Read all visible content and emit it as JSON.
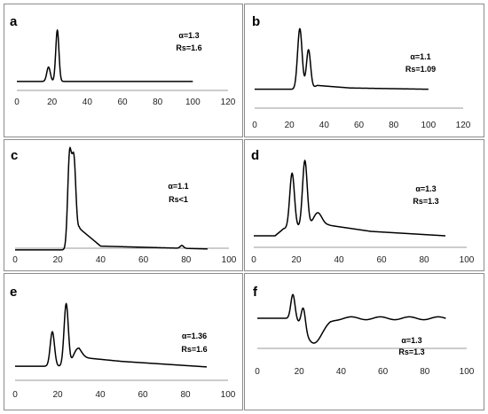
{
  "chart_data": [
    {
      "type": "line",
      "label": "a",
      "annotations": [
        "α=1.3",
        "Rs=1.6"
      ],
      "xlim": [
        0,
        120
      ],
      "xticks": [
        0,
        20,
        40,
        60,
        80,
        100,
        120
      ],
      "x_end": 100,
      "baseline": 0.02,
      "peaks": [
        {
          "x": 18,
          "h": 0.28,
          "w": 1.0
        },
        {
          "x": 23,
          "h": 1.0,
          "w": 0.9
        }
      ],
      "tail": [],
      "shoulders": []
    },
    {
      "type": "line",
      "label": "b",
      "annotations": [
        "α=1.1",
        "Rs=1.09"
      ],
      "xlim": [
        0,
        120
      ],
      "xticks": [
        0,
        20,
        40,
        60,
        80,
        100,
        120
      ],
      "x_end": 100,
      "baseline": 0.06,
      "peaks": [
        {
          "x": 26,
          "h": 0.95,
          "w": 1.3
        },
        {
          "x": 31,
          "h": 0.62,
          "w": 1.2
        }
      ],
      "tail": [
        {
          "x": 36,
          "y": 0.12
        },
        {
          "x": 55,
          "y": 0.08
        },
        {
          "x": 100,
          "y": 0.06
        }
      ],
      "shoulders": []
    },
    {
      "type": "line",
      "label": "c",
      "annotations": [
        "α=1.1",
        "Rs<1"
      ],
      "xlim": [
        0,
        100
      ],
      "xticks": [
        0,
        20,
        40,
        60,
        80,
        100
      ],
      "x_end": 90,
      "baseline": 0.02,
      "peaks": [
        {
          "x": 25.5,
          "h": 1.0,
          "w": 0.9
        },
        {
          "x": 27.5,
          "h": 0.85,
          "w": 0.9
        }
      ],
      "tail": [
        {
          "x": 30,
          "y": 0.25
        },
        {
          "x": 40,
          "y": 0.06
        },
        {
          "x": 90,
          "y": 0.03
        }
      ],
      "shoulders": [
        {
          "x": 78,
          "h": 0.03,
          "w": 0.8
        }
      ]
    },
    {
      "type": "line",
      "label": "d",
      "annotations": [
        "α=1.3",
        "Rs=1.3"
      ],
      "xlim": [
        0,
        100
      ],
      "xticks": [
        0,
        20,
        40,
        60,
        80,
        100
      ],
      "x_end": 90,
      "baseline": 0.1,
      "peaks": [
        {
          "x": 18,
          "h": 0.62,
          "w": 1.1
        },
        {
          "x": 24,
          "h": 0.75,
          "w": 1.1
        },
        {
          "x": 30,
          "h": 0.15,
          "w": 2.0
        }
      ],
      "tail": [
        {
          "x": 14,
          "y": 0.18
        },
        {
          "x": 35,
          "y": 0.22
        },
        {
          "x": 55,
          "y": 0.15
        },
        {
          "x": 90,
          "y": 0.1
        }
      ],
      "shoulders": []
    },
    {
      "type": "line",
      "label": "e",
      "annotations": [
        "α=1.36",
        "Rs=1.6"
      ],
      "xlim": [
        0,
        100
      ],
      "xticks": [
        0,
        20,
        40,
        60,
        80,
        100
      ],
      "x_end": 90,
      "baseline": 0.05,
      "peaks": [
        {
          "x": 17.5,
          "h": 0.5,
          "w": 1.0
        },
        {
          "x": 24,
          "h": 0.9,
          "w": 1.0
        },
        {
          "x": 29,
          "h": 0.15,
          "w": 2.0
        }
      ],
      "tail": [
        {
          "x": 30,
          "y": 0.18
        },
        {
          "x": 50,
          "y": 0.12
        },
        {
          "x": 90,
          "y": 0.04
        }
      ],
      "shoulders": []
    },
    {
      "type": "line",
      "label": "f",
      "annotations": [
        "α=1.3",
        "Rs=1.3"
      ],
      "xlim": [
        0,
        100
      ],
      "xticks": [
        0,
        20,
        40,
        60,
        80,
        100
      ],
      "x_end": 90,
      "baseline": 0.55,
      "peaks": [
        {
          "x": 17,
          "h": 0.35,
          "w": 1.0
        },
        {
          "x": 22,
          "h": 0.3,
          "w": 1.0
        }
      ],
      "dip": {
        "x": 27,
        "h": -0.35,
        "w": 4.0
      },
      "tail": [],
      "shoulders": []
    }
  ]
}
